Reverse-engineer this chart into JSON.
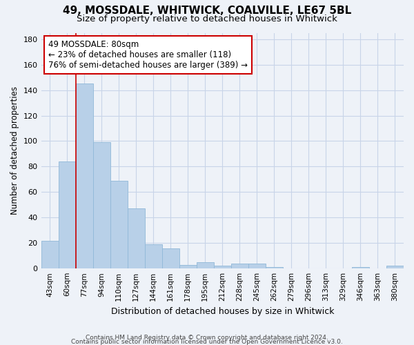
{
  "title1": "49, MOSSDALE, WHITWICK, COALVILLE, LE67 5BL",
  "title2": "Size of property relative to detached houses in Whitwick",
  "xlabel": "Distribution of detached houses by size in Whitwick",
  "ylabel": "Number of detached properties",
  "categories": [
    "43sqm",
    "60sqm",
    "77sqm",
    "94sqm",
    "110sqm",
    "127sqm",
    "144sqm",
    "161sqm",
    "178sqm",
    "195sqm",
    "212sqm",
    "228sqm",
    "245sqm",
    "262sqm",
    "279sqm",
    "296sqm",
    "313sqm",
    "329sqm",
    "346sqm",
    "363sqm",
    "380sqm"
  ],
  "values": [
    22,
    84,
    145,
    99,
    69,
    47,
    19,
    16,
    3,
    5,
    2,
    4,
    4,
    1,
    0,
    0,
    0,
    0,
    1,
    0,
    2
  ],
  "bar_color": "#b8d0e8",
  "bar_edge_color": "#90b8d8",
  "grid_color": "#c8d4e8",
  "background_color": "#eef2f8",
  "property_line_color": "#cc0000",
  "annotation_text": "49 MOSSDALE: 80sqm\n← 23% of detached houses are smaller (118)\n76% of semi-detached houses are larger (389) →",
  "annotation_box_color": "#ffffff",
  "annotation_box_edge": "#cc0000",
  "ylim": [
    0,
    185
  ],
  "yticks": [
    0,
    20,
    40,
    60,
    80,
    100,
    120,
    140,
    160,
    180
  ],
  "footer1": "Contains HM Land Registry data © Crown copyright and database right 2024.",
  "footer2": "Contains public sector information licensed under the Open Government Licence v3.0."
}
